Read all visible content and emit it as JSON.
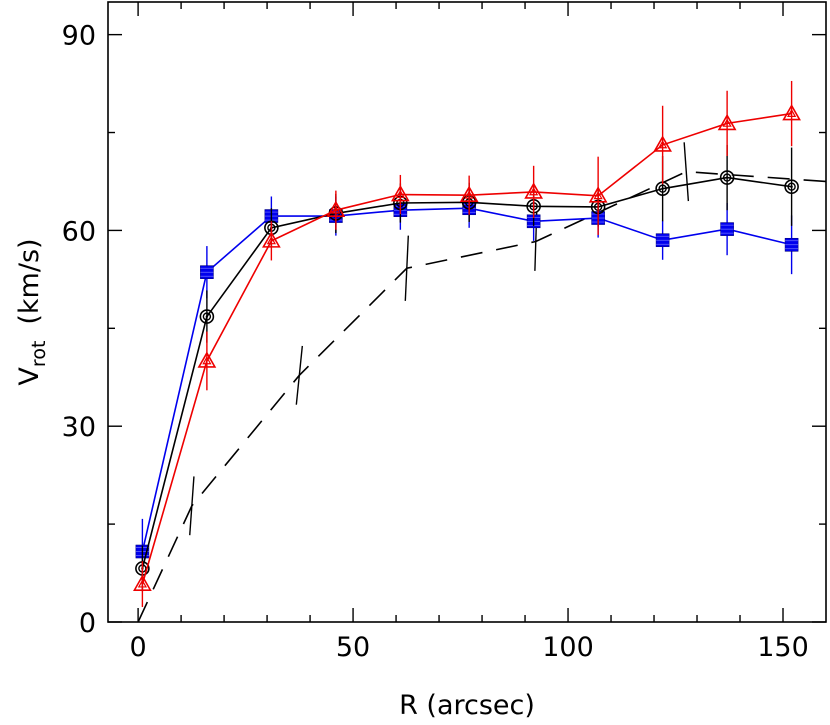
{
  "chart_data": {
    "type": "line",
    "title": "",
    "xlabel": "R (arcsec)",
    "ylabel_main": "V",
    "ylabel_sub": "rot",
    "ylabel_unit": "(km/s)",
    "xlim": [
      -7,
      160
    ],
    "ylim": [
      0,
      95
    ],
    "xticks_major": [
      0,
      50,
      100,
      150
    ],
    "xticks_major_labels": [
      "0",
      "50",
      "100",
      "150"
    ],
    "xticks_minor": [
      10,
      20,
      30,
      40,
      60,
      70,
      80,
      90,
      110,
      120,
      130,
      140
    ],
    "yticks_major": [
      0,
      30,
      60,
      90
    ],
    "yticks_major_labels": [
      "0",
      "30",
      "60",
      "90"
    ],
    "yticks_minor": [
      15,
      45,
      75
    ],
    "grid": false,
    "legend": "none",
    "series": [
      {
        "color": "#0000ee",
        "marker": "square",
        "linestyle": "solid",
        "x": [
          1,
          16,
          31,
          46,
          61,
          77,
          92,
          107,
          122,
          137,
          152
        ],
        "y": [
          10.8,
          53.6,
          62.2,
          62.2,
          63.1,
          63.4,
          61.4,
          61.9,
          58.5,
          60.2,
          57.8
        ],
        "err": [
          5,
          4,
          3,
          3,
          3,
          3,
          3,
          3,
          3,
          4,
          4.5
        ]
      },
      {
        "color": "#000000",
        "marker": "circle",
        "linestyle": "solid",
        "x": [
          1,
          16,
          31,
          46,
          61,
          77,
          92,
          107,
          122,
          137,
          152
        ],
        "y": [
          8.2,
          46.8,
          60.4,
          62.6,
          64.2,
          64.3,
          63.7,
          63.6,
          66.4,
          68.1,
          66.7
        ],
        "err": [
          3.5,
          4,
          3,
          3,
          3,
          3,
          3,
          3,
          5,
          5,
          6
        ]
      },
      {
        "color": "#ee0000",
        "marker": "triangle",
        "linestyle": "solid",
        "x": [
          1,
          16,
          31,
          46,
          61,
          77,
          92,
          107,
          122,
          137,
          152
        ],
        "y": [
          5.8,
          40.0,
          58.4,
          63.1,
          65.5,
          65.4,
          65.9,
          65.3,
          73.1,
          76.4,
          77.9
        ],
        "err": [
          3.5,
          4.5,
          3,
          3,
          3,
          3,
          4,
          6,
          6,
          5,
          5
        ]
      },
      {
        "color": "#000000",
        "marker": "none",
        "linestyle": "dashed",
        "x": [
          0,
          12.5,
          37.5,
          62.5,
          92.5,
          127.5,
          160
        ],
        "y": [
          0,
          17.8,
          37.8,
          54.2,
          58.3,
          69.0,
          67.5
        ],
        "err": [
          0,
          4.5,
          4.5,
          5,
          4.5,
          4.5,
          0
        ],
        "err_tilt": [
          0,
          0.7,
          1.0,
          0.5,
          0.3,
          -0.7,
          0
        ]
      }
    ]
  }
}
